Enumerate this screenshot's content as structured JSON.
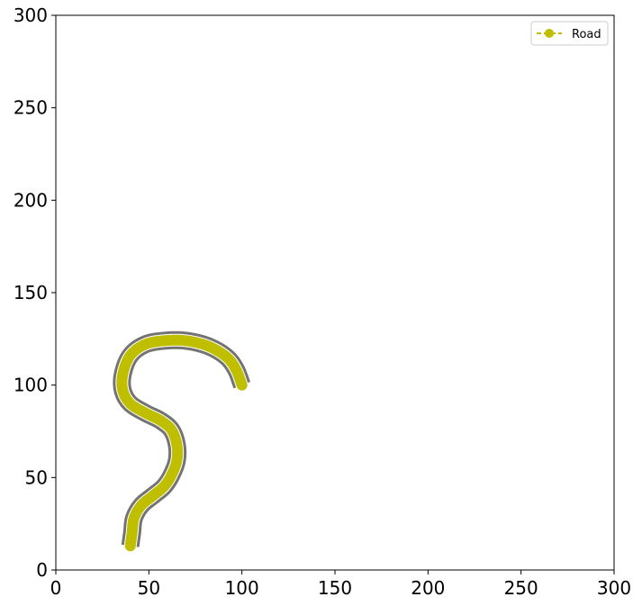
{
  "chart_data": {
    "type": "line",
    "title": "",
    "xlabel": "",
    "ylabel": "",
    "xlim": [
      0,
      300
    ],
    "ylim": [
      0,
      300
    ],
    "x_ticks": [
      0,
      50,
      100,
      150,
      200,
      250,
      300
    ],
    "y_ticks": [
      0,
      50,
      100,
      150,
      200,
      250,
      300
    ],
    "x_tick_labels": [
      "0",
      "50",
      "100",
      "150",
      "200",
      "250",
      "300"
    ],
    "y_tick_labels": [
      "0",
      "50",
      "100",
      "150",
      "200",
      "250",
      "300"
    ],
    "grid": false,
    "legend_position": "top-right",
    "series": [
      {
        "name": "Road",
        "color": "#bfbf00",
        "outline_color": "#737373",
        "line_style": "dashed",
        "marker": "circle",
        "x": [
          40,
          41,
          42,
          46,
          52,
          58,
          62,
          65,
          65,
          62,
          56,
          48,
          40,
          36,
          36,
          40,
          48,
          58,
          70,
          82,
          92,
          97,
          100
        ],
        "y": [
          13,
          20,
          28,
          35,
          40,
          45,
          51,
          59,
          68,
          76,
          81,
          85,
          90,
          97,
          106,
          116,
          122,
          124,
          124,
          121,
          115,
          108,
          100
        ]
      }
    ]
  }
}
